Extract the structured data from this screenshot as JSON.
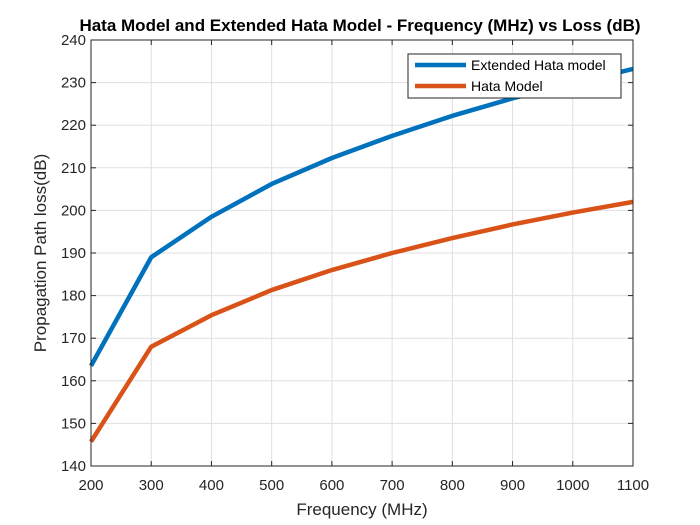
{
  "chart_data": {
    "type": "line",
    "title": "Hata Model and Extended Hata Model - Frequency (MHz) vs Loss (dB)",
    "xlabel": "Frequency (MHz)",
    "ylabel": "Propagation Path loss(dB)",
    "xlim": [
      200,
      1100
    ],
    "ylim": [
      140,
      240
    ],
    "x_ticks": [
      200,
      300,
      400,
      500,
      600,
      700,
      800,
      900,
      1000,
      1100
    ],
    "y_ticks": [
      140,
      150,
      160,
      170,
      180,
      190,
      200,
      210,
      220,
      230,
      240
    ],
    "grid": true,
    "legend_position": "top-right",
    "x": [
      200,
      300,
      400,
      500,
      600,
      700,
      800,
      900,
      1000,
      1100
    ],
    "series": [
      {
        "name": "Extended Hata model",
        "color": "#0072BD",
        "values": [
          163.5,
          189.0,
          198.5,
          206.2,
          212.3,
          217.5,
          222.2,
          226.3,
          229.8,
          233.2
        ]
      },
      {
        "name": "Hata Model",
        "color": "#D95319",
        "values": [
          145.7,
          168.0,
          175.4,
          181.3,
          186.0,
          190.0,
          193.5,
          196.7,
          199.5,
          202.0
        ]
      }
    ]
  }
}
